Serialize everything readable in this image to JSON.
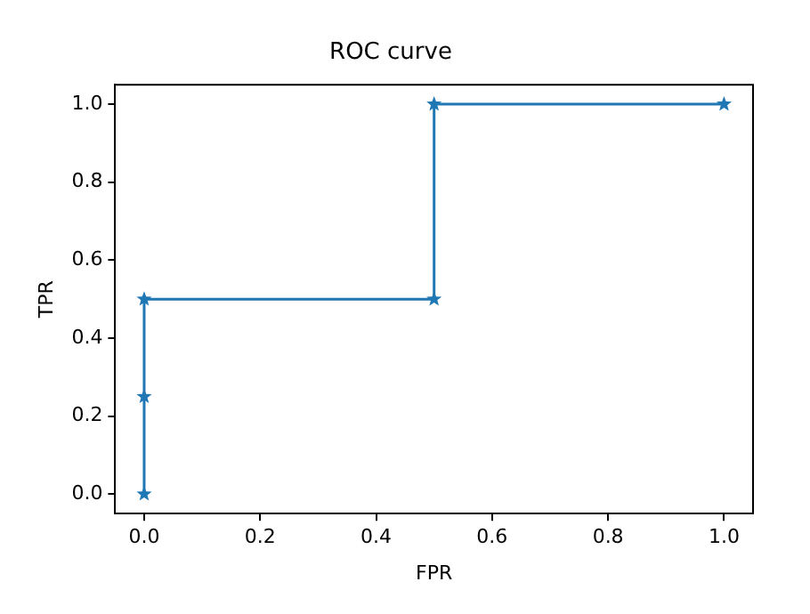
{
  "chart_data": {
    "type": "line",
    "title": "ROC curve",
    "xlabel": "FPR",
    "ylabel": "TPR",
    "x": [
      0,
      0,
      0,
      0.5,
      0.5,
      1
    ],
    "series": [
      {
        "color": "#1f77b4",
        "values": [
          0,
          0.25,
          0.5,
          0.5,
          1,
          1
        ]
      }
    ],
    "xlim": [
      -0.05,
      1.05
    ],
    "ylim": [
      -0.05,
      1.05
    ],
    "xticks": [
      {
        "value": 0,
        "label": "0.0"
      },
      {
        "value": 0.2,
        "label": "0.2"
      },
      {
        "value": 0.4,
        "label": "0.4"
      },
      {
        "value": 0.6,
        "label": "0.6"
      },
      {
        "value": 0.8,
        "label": "0.8"
      },
      {
        "value": 1,
        "label": "1.0"
      }
    ],
    "yticks": [
      {
        "value": 0,
        "label": "0.0"
      },
      {
        "value": 0.2,
        "label": "0.2"
      },
      {
        "value": 0.4,
        "label": "0.4"
      },
      {
        "value": 0.6,
        "label": "0.6"
      },
      {
        "value": 0.8,
        "label": "0.8"
      },
      {
        "value": 1,
        "label": "1.0"
      }
    ],
    "grid": false,
    "legend": false,
    "marker": "star",
    "line_style": "solid"
  }
}
